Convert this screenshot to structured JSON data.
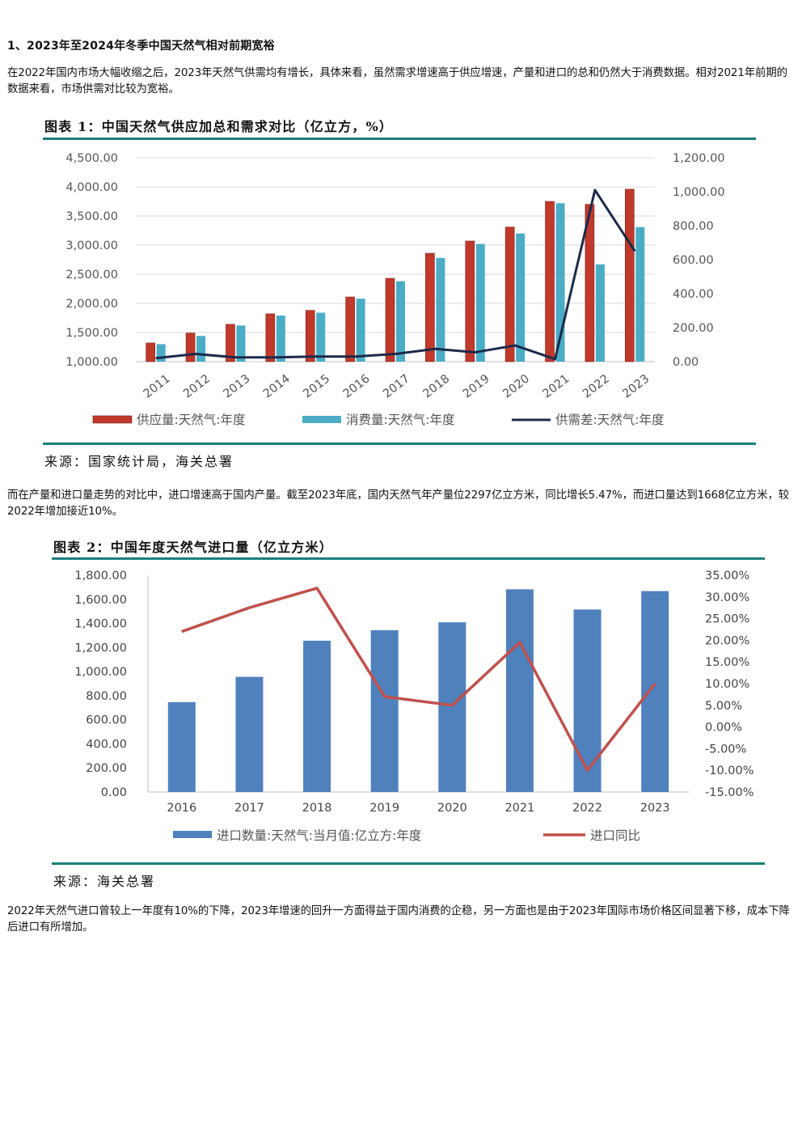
{
  "section": {
    "heading": "1、2023年至2024年冬季中国天然气相对前期宽裕",
    "para1": "在2022年国内市场大幅收缩之后，2023年天然气供需均有增长，具体来看，虽然需求增速高于供应增速，产量和进口的总和仍然大于消费数据。相对2021年前期的数据来看，市场供需对比较为宽裕。",
    "para2": "而在产量和进口量走势的对比中，进口增速高于国内产量。截至2023年底，国内天然气年产量位2297亿立方米，同比增长5.47%，而进口量达到1668亿立方米，较2022年增加接近10%。",
    "para3": "2022年天然气进口曾较上一年度有10%的下降，2023年增速的回升一方面得益于国内消费的企稳，另一方面也是由于2023年国际市场价格区间显著下移，成本下降后进口有所增加。"
  },
  "figure1": {
    "title": "图表 1：中国天然气供应加总和需求对比（亿立方，%）",
    "source": "来源：国家统计局，海关总署"
  },
  "figure2": {
    "title": "图表 2：中国年度天然气进口量（亿立方米）",
    "source": "来源：海关总署"
  },
  "colors": {
    "rule": "#1b7f7a",
    "supply": "#c0392b",
    "consumption": "#4bacc6",
    "gap": "#1c2a4a",
    "imports": "#4f81bd",
    "import_yoy": "#c0504d"
  },
  "chart_data": [
    {
      "type": "bar",
      "categories": [
        "2011",
        "2012",
        "2013",
        "2014",
        "2015",
        "2016",
        "2017",
        "2018",
        "2019",
        "2020",
        "2021",
        "2022",
        "2023"
      ],
      "series": [
        {
          "name": "供应量:天然气:年度",
          "axis": "left",
          "type": "bar",
          "values": [
            1320,
            1490,
            1640,
            1820,
            1880,
            2110,
            2430,
            2860,
            3070,
            3310,
            3750,
            3700,
            3960
          ]
        },
        {
          "name": "消费量:天然气:年度",
          "axis": "left",
          "type": "bar",
          "values": [
            1300,
            1440,
            1620,
            1790,
            1840,
            2080,
            2380,
            2780,
            3020,
            3200,
            3720,
            2670,
            3310
          ]
        },
        {
          "name": "供需差:天然气:年度",
          "axis": "right",
          "type": "line",
          "values": [
            20,
            45,
            25,
            25,
            30,
            30,
            45,
            75,
            55,
            95,
            15,
            1010,
            650
          ]
        }
      ],
      "ylim": [
        1000,
        4500
      ],
      "yticks": [
        "1,000.00",
        "1,500.00",
        "2,000.00",
        "2,500.00",
        "3,000.00",
        "3,500.00",
        "4,000.00",
        "4,500.00"
      ],
      "y2lim": [
        0,
        1200
      ],
      "y2ticks": [
        "0.00",
        "200.00",
        "400.00",
        "600.00",
        "800.00",
        "1,000.00",
        "1,200.00"
      ],
      "legend": "bottom",
      "grid": true
    },
    {
      "type": "bar",
      "categories": [
        "2016",
        "2017",
        "2018",
        "2019",
        "2020",
        "2021",
        "2022",
        "2023"
      ],
      "series": [
        {
          "name": "进口数量:天然气:当月值:亿立方:年度",
          "axis": "left",
          "type": "bar",
          "values": [
            746,
            956,
            1256,
            1343,
            1409,
            1683,
            1515,
            1668
          ]
        },
        {
          "name": "进口同比",
          "axis": "right",
          "type": "line",
          "values": [
            22.0,
            27.5,
            32.0,
            7.0,
            5.0,
            19.5,
            -10.0,
            10.0
          ]
        }
      ],
      "ylim": [
        0,
        1800
      ],
      "yticks": [
        "0.00",
        "200.00",
        "400.00",
        "600.00",
        "800.00",
        "1,000.00",
        "1,200.00",
        "1,400.00",
        "1,600.00",
        "1,800.00"
      ],
      "y2lim": [
        -15,
        35
      ],
      "y2ticks": [
        "-15.00%",
        "-10.00%",
        "-5.00%",
        "0.00%",
        "5.00%",
        "10.00%",
        "15.00%",
        "20.00%",
        "25.00%",
        "30.00%",
        "35.00%"
      ],
      "legend": "bottom",
      "grid": false
    }
  ]
}
